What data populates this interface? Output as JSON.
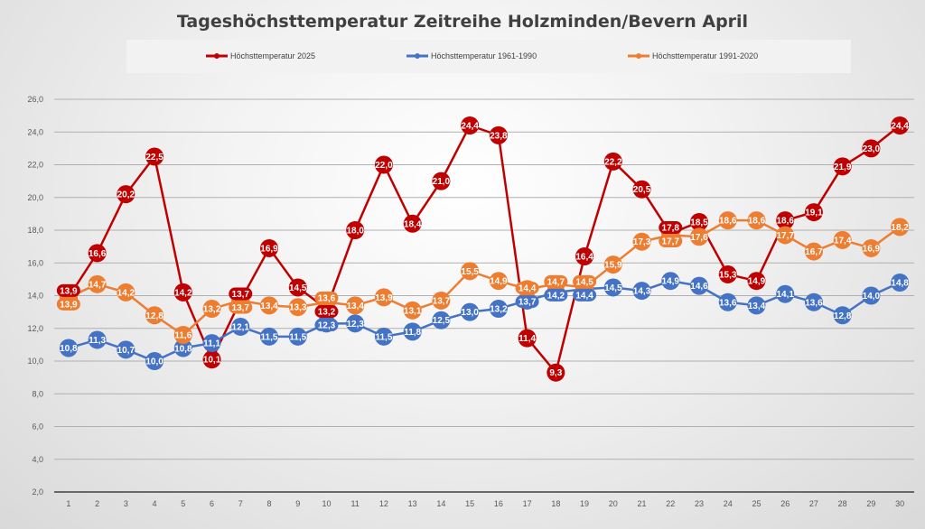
{
  "chart_data": {
    "type": "line",
    "title": "Tageshöchsttemperatur Zeitreihe Holzminden/Bevern April",
    "xlabel": "",
    "ylabel": "",
    "x": [
      1,
      2,
      3,
      4,
      5,
      6,
      7,
      8,
      9,
      10,
      11,
      12,
      13,
      14,
      15,
      16,
      17,
      18,
      19,
      20,
      21,
      22,
      23,
      24,
      25,
      26,
      27,
      28,
      29,
      30
    ],
    "ylim": [
      2,
      26
    ],
    "yticks": [
      "2,0",
      "4,0",
      "6,0",
      "8,0",
      "10,0",
      "12,0",
      "14,0",
      "16,0",
      "18,0",
      "20,0",
      "22,0",
      "24,0",
      "26,0"
    ],
    "grid": true,
    "legend_position": "top",
    "series": [
      {
        "name": "Höchsttemperatur 2025",
        "color": "#c00000",
        "values": [
          13.9,
          16.6,
          20.2,
          22.5,
          14.2,
          10.1,
          13.7,
          16.9,
          14.5,
          13.2,
          18.0,
          22.0,
          18.4,
          21.0,
          24.4,
          23.8,
          11.4,
          9.3,
          16.4,
          22.2,
          20.5,
          17.8,
          18.5,
          15.3,
          14.9,
          18.6,
          19.1,
          21.9,
          23.0,
          24.4
        ]
      },
      {
        "name": "Höchsttemperatur 1961-1990",
        "color": "#4472c4",
        "values": [
          10.8,
          11.3,
          10.7,
          10.0,
          10.8,
          11.1,
          12.1,
          11.5,
          11.5,
          12.3,
          12.3,
          11.5,
          11.8,
          12.5,
          13.0,
          13.2,
          13.7,
          14.2,
          14.4,
          14.5,
          14.3,
          14.9,
          14.6,
          13.6,
          13.4,
          14.1,
          13.6,
          12.8,
          14.0,
          14.8
        ]
      },
      {
        "name": "Höchsttemperatur 1991-2020",
        "color": "#ed7d31",
        "values": [
          13.9,
          14.7,
          14.2,
          12.8,
          11.6,
          13.2,
          13.7,
          13.4,
          13.3,
          13.6,
          13.4,
          13.9,
          13.1,
          13.7,
          15.5,
          14.9,
          14.4,
          14.7,
          14.5,
          15.9,
          17.3,
          17.7,
          17.6,
          18.6,
          18.6,
          17.7,
          16.7,
          17.4,
          16.9,
          18.2
        ]
      }
    ]
  }
}
